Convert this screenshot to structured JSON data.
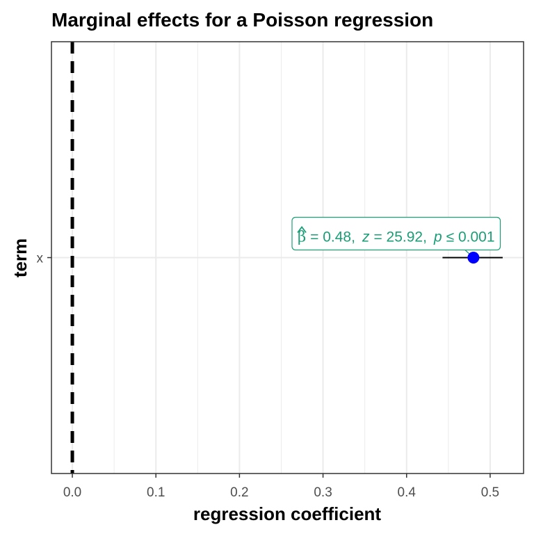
{
  "chart_data": {
    "type": "scatter",
    "title": "Marginal effects for a Poisson regression",
    "xlabel": "regression coefficient",
    "ylabel": "term",
    "xlim": [
      -0.025,
      0.54
    ],
    "x_ticks": [
      "0.0",
      "0.1",
      "0.2",
      "0.3",
      "0.4",
      "0.5"
    ],
    "categories": [
      "x"
    ],
    "points": [
      {
        "term": "x",
        "estimate": 0.48,
        "ci_low": 0.443,
        "ci_high": 0.515
      }
    ],
    "reference_line": {
      "x": 0,
      "style": "dashed"
    },
    "annotation": {
      "beta_symbol": "β",
      "beta_part": "= 0.48,",
      "z_symbol": "z",
      "z_part": "= 25.92,",
      "p_symbol": "p",
      "p_part": "≤ 0.001"
    },
    "grid": true,
    "colors": {
      "point": "#0000ff",
      "label": "#1b9e77",
      "errorbar": "#000000",
      "grid": "#ebebeb",
      "panel_border": "#333333"
    }
  }
}
